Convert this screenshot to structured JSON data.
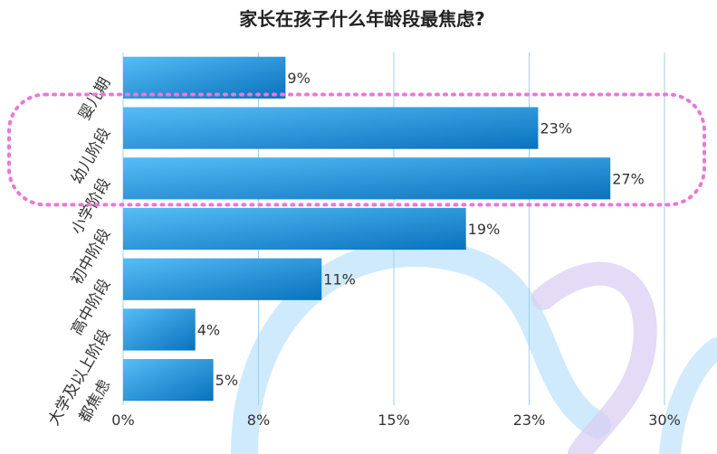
{
  "chart_data": {
    "type": "bar",
    "orientation": "horizontal",
    "title": "家长在孩子什么年龄段最焦虑?",
    "xlabel": "",
    "ylabel": "",
    "categories": [
      "婴儿期",
      "幼儿阶段",
      "小学阶段",
      "初中阶段",
      "高中阶段",
      "大学及以上阶段",
      "都焦虑"
    ],
    "values": [
      9,
      23,
      27,
      19,
      11,
      4,
      5
    ],
    "value_labels": [
      "9%",
      "23%",
      "27%",
      "19%",
      "11%",
      "4%",
      "5%"
    ],
    "xlim": [
      0,
      30
    ],
    "tick_values": [
      0,
      7.5,
      15,
      22.5,
      30
    ],
    "tick_labels": [
      "0%",
      "8%",
      "15%",
      "23%",
      "30%"
    ],
    "grid": "vertical",
    "highlighted_categories": [
      "幼儿阶段",
      "小学阶段"
    ]
  },
  "colors": {
    "bar_light": "#56bdf5",
    "bar_dark": "#0872be",
    "grid": "#9fd2ec",
    "highlight_outline": "#e879d9",
    "decor_wave": "#bfe3fb",
    "decor_wave_purple": "#d9ccf4"
  }
}
